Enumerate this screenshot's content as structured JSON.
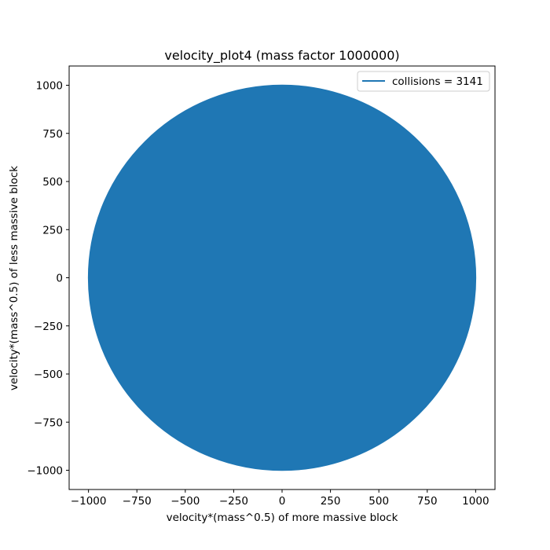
{
  "chart_data": {
    "type": "line",
    "title": "velocity_plot4 (mass factor 1000000)",
    "xlabel": "velocity*(mass^0.5) of more massive block",
    "ylabel": "velocity*(mass^0.5) of less massive block",
    "xlim": [
      -1100,
      1100
    ],
    "ylim": [
      -1100,
      1100
    ],
    "xticks": [
      -1000,
      -750,
      -500,
      -250,
      0,
      250,
      500,
      750,
      1000
    ],
    "yticks": [
      -1000,
      -750,
      -500,
      -250,
      0,
      250,
      500,
      750,
      1000
    ],
    "xtick_labels": [
      "−1000",
      "−750",
      "−500",
      "−250",
      "0",
      "250",
      "500",
      "750",
      "1000"
    ],
    "ytick_labels": [
      "−1000",
      "−750",
      "−500",
      "−250",
      "0",
      "250",
      "500",
      "750",
      "1000"
    ],
    "grid": false,
    "legend_position": "top-right",
    "series": [
      {
        "name": "collisions = 3141",
        "color": "#1f77b4",
        "shape": "circle",
        "radius": 1000,
        "center": [
          0,
          0
        ],
        "collisions": 3141
      }
    ]
  }
}
